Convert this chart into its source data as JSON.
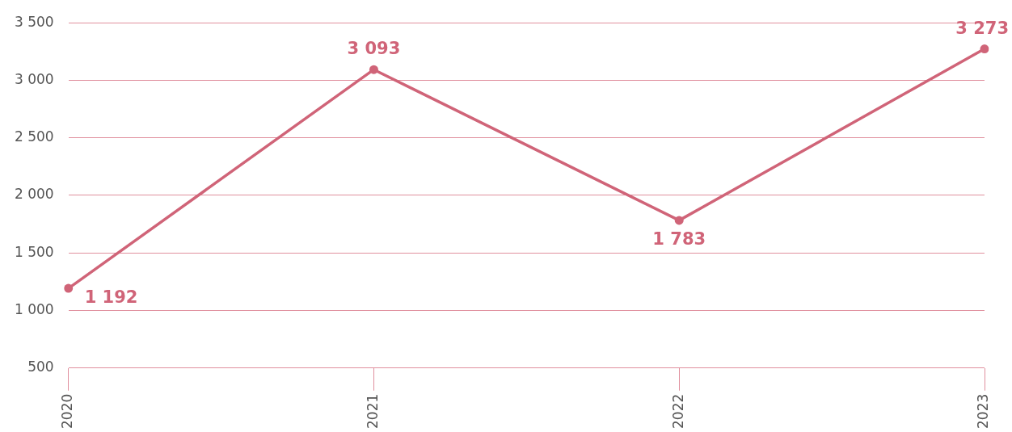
{
  "chart_data": {
    "type": "line",
    "categories": [
      "2020",
      "2021",
      "2022",
      "2023"
    ],
    "series": [
      {
        "color": "#d06478",
        "values": [
          1192,
          3093,
          1783,
          3273
        ],
        "value_labels": [
          "1 192",
          "3 093",
          "1 783",
          "3 273"
        ]
      }
    ],
    "ylim": [
      500,
      3500
    ],
    "yticks": [
      {
        "value": 500,
        "label": "500"
      },
      {
        "value": 1000,
        "label": "1 000"
      },
      {
        "value": 1500,
        "label": "1 500"
      },
      {
        "value": 2000,
        "label": "2 000"
      },
      {
        "value": 2500,
        "label": "2 500"
      },
      {
        "value": 3000,
        "label": "3 000"
      },
      {
        "value": 3500,
        "label": "3 500"
      }
    ],
    "grid": "y",
    "marker": "circle",
    "line_style": "solid",
    "legend": false
  }
}
